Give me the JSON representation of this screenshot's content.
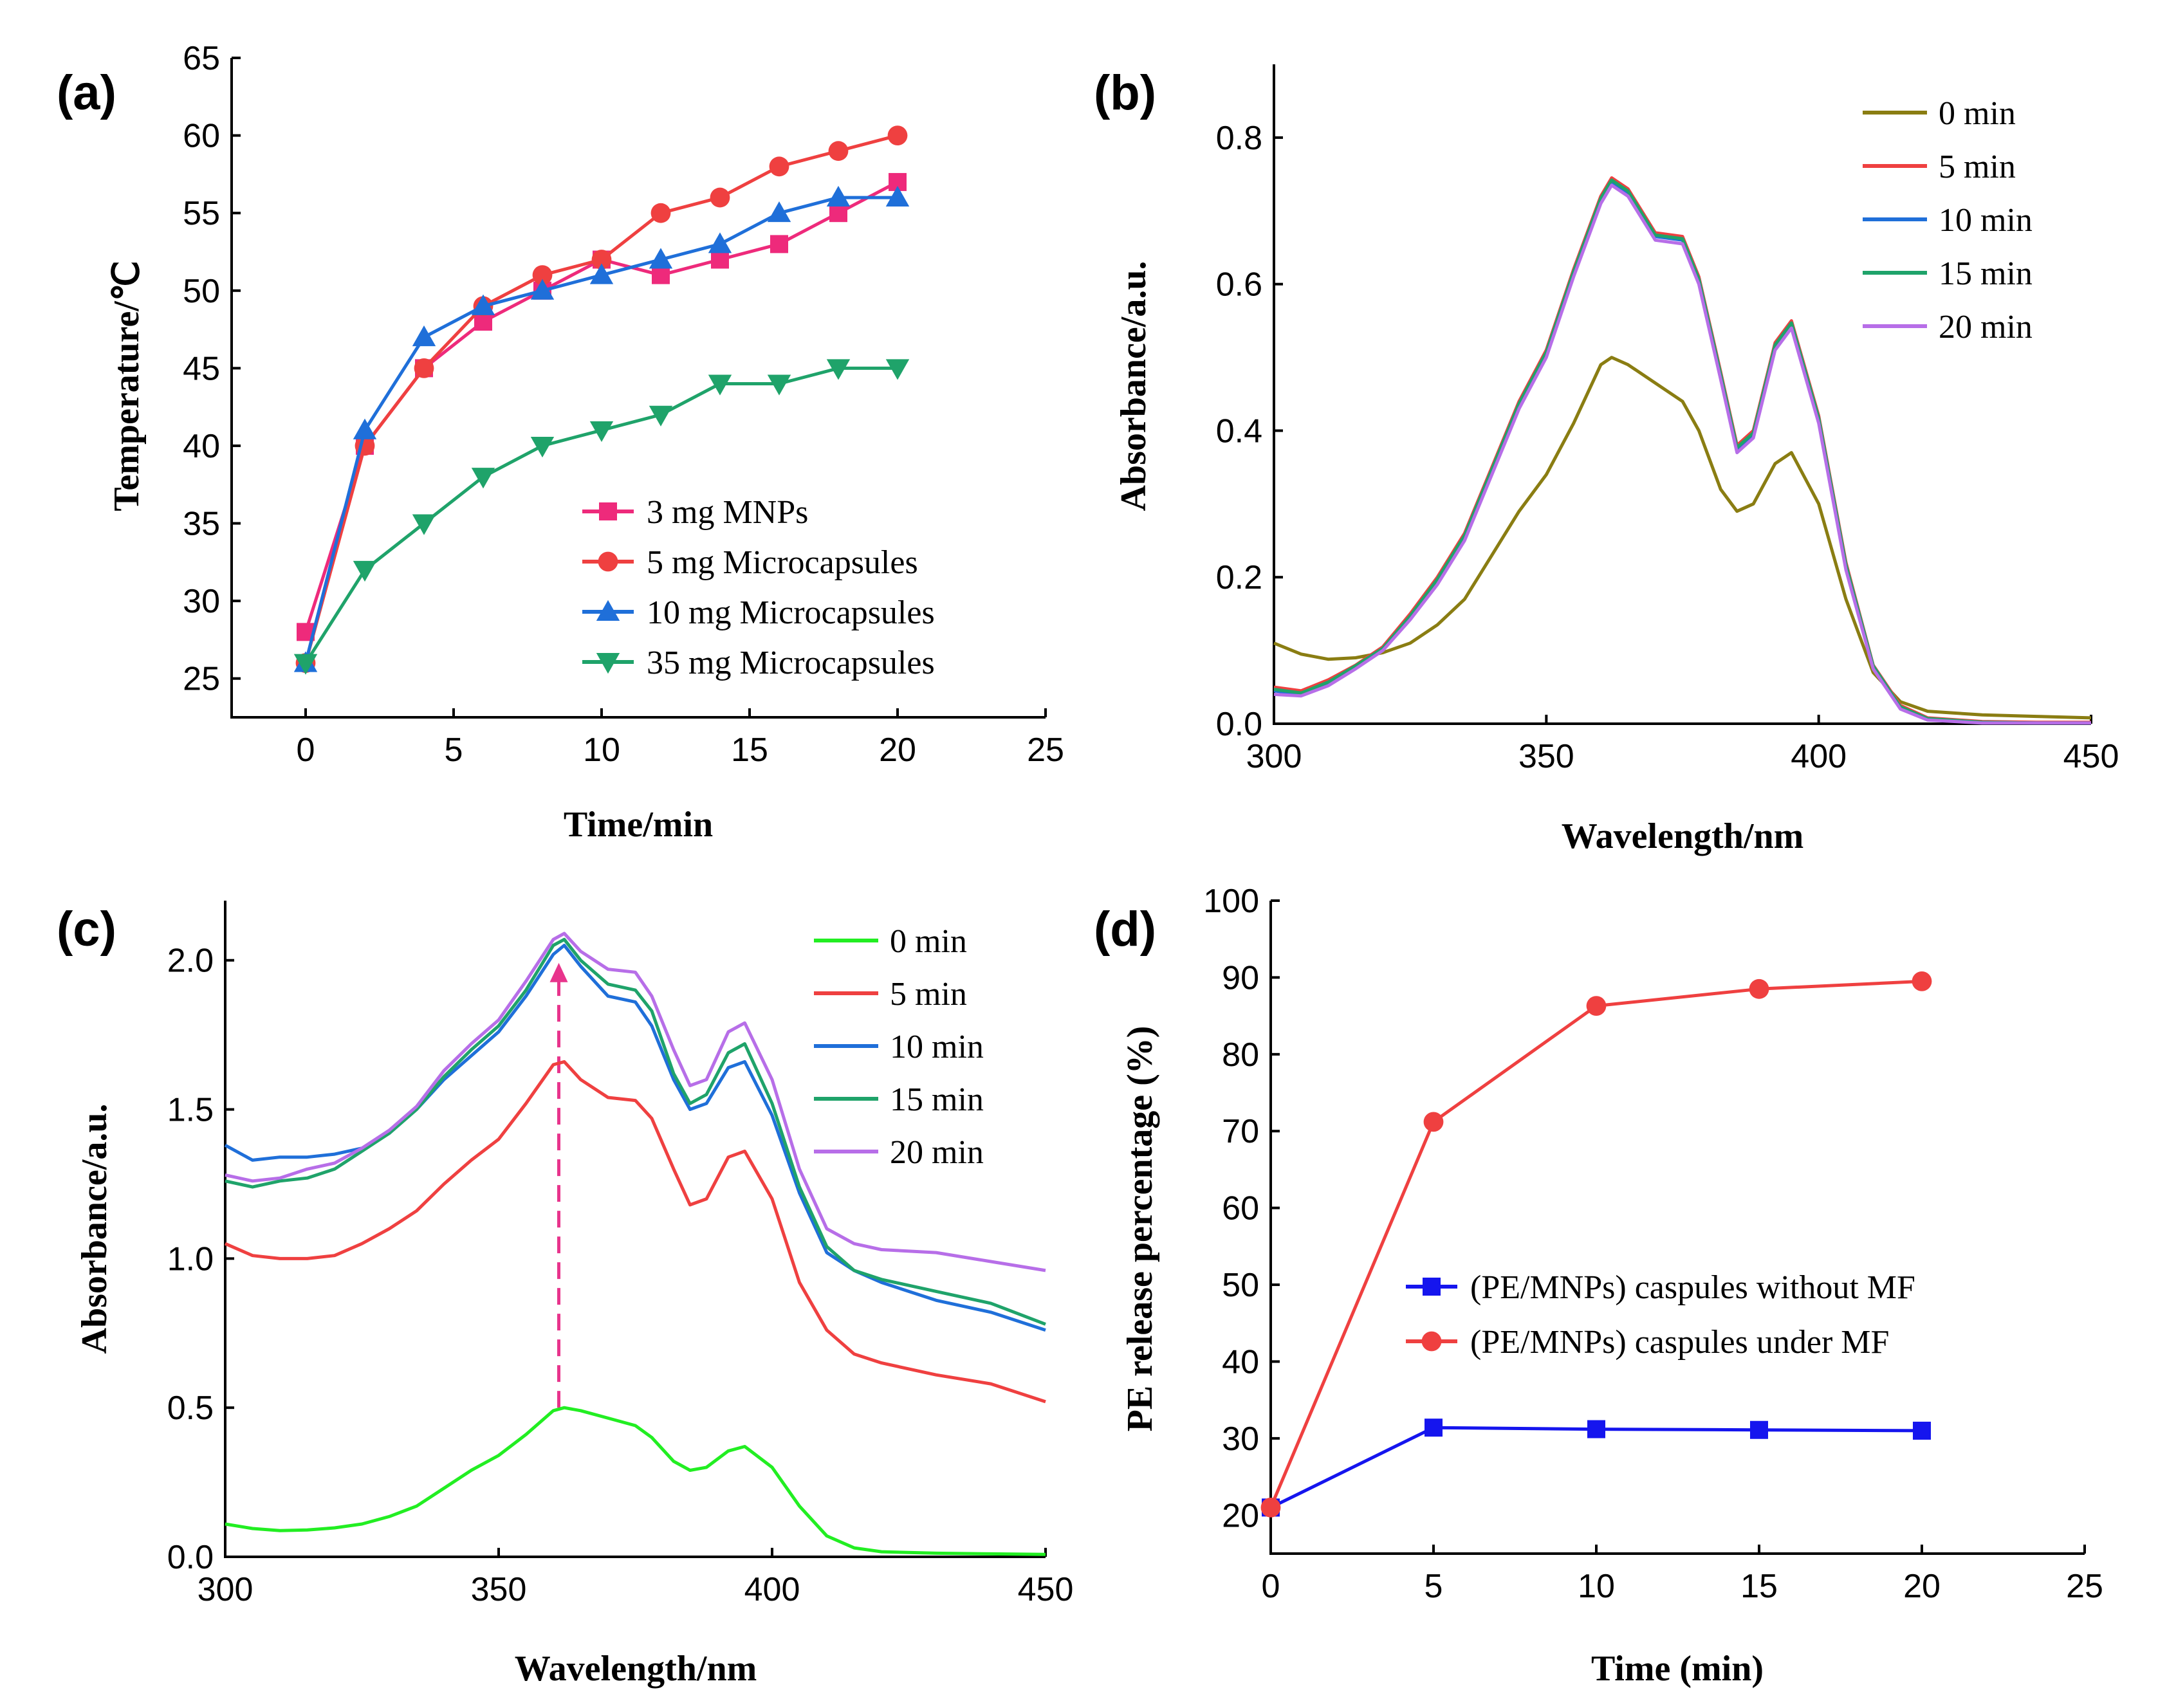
{
  "chart_data": [
    {
      "type": "line",
      "panel_label": "(a)",
      "xlabel": "Time/min",
      "ylabel": "Temperature/℃",
      "xlim": [
        -2.5,
        25
      ],
      "ylim": [
        22.5,
        65
      ],
      "xticks": [
        0,
        5,
        10,
        15,
        20,
        25
      ],
      "xtick_labels": [
        "0",
        "5",
        "10",
        "15",
        "20",
        "25"
      ],
      "yticks": [
        25,
        30,
        35,
        40,
        45,
        50,
        55,
        60,
        65
      ],
      "ytick_labels": [
        "25",
        "30",
        "35",
        "40",
        "45",
        "50",
        "55",
        "60",
        "65"
      ],
      "legend_position": "bottom-right",
      "series": [
        {
          "name": "3 mg MNPs",
          "color": "#ee2a7b",
          "marker": "square",
          "x": [
            0,
            2,
            4,
            6,
            8,
            10,
            12,
            14,
            16,
            18,
            20
          ],
          "y": [
            28,
            40,
            45,
            48,
            50,
            52,
            51,
            52,
            53,
            55,
            57
          ]
        },
        {
          "name": "5 mg Microcapsules",
          "color": "#ef4040",
          "marker": "circle",
          "x": [
            0,
            2,
            4,
            6,
            8,
            10,
            12,
            14,
            16,
            18,
            20
          ],
          "y": [
            26,
            40,
            45,
            49,
            51,
            52,
            55,
            56,
            58,
            59,
            60
          ]
        },
        {
          "name": "10 mg Microcapsules",
          "color": "#1f6fd9",
          "marker": "triangle-up",
          "x": [
            0,
            2,
            4,
            6,
            8,
            10,
            12,
            14,
            16,
            18,
            20
          ],
          "y": [
            26,
            41,
            47,
            49,
            50,
            51,
            52,
            53,
            55,
            56,
            56
          ]
        },
        {
          "name": "35 mg Microcapsules",
          "color": "#1fa36a",
          "marker": "triangle-down",
          "x": [
            0,
            2,
            4,
            6,
            8,
            10,
            12,
            14,
            16,
            18,
            20
          ],
          "y": [
            26,
            32,
            35,
            38,
            40,
            41,
            42,
            44,
            44,
            45,
            45
          ]
        }
      ]
    },
    {
      "type": "line",
      "panel_label": "(b)",
      "xlabel": "Wavelength/nm",
      "ylabel": "Absorbance/a.u.",
      "xlim": [
        300,
        450
      ],
      "ylim": [
        0,
        0.9
      ],
      "xticks": [
        300,
        350,
        400,
        450
      ],
      "xtick_labels": [
        "300",
        "350",
        "400",
        "450"
      ],
      "yticks": [
        0,
        0.2,
        0.4,
        0.6,
        0.8
      ],
      "ytick_labels": [
        "0.0",
        "0.2",
        "0.4",
        "0.6",
        "0.8"
      ],
      "legend_position": "top-right",
      "series": [
        {
          "name": "0 min",
          "color": "#8a7d12",
          "x": [
            300,
            305,
            310,
            315,
            320,
            325,
            330,
            335,
            340,
            345,
            350,
            355,
            360,
            362,
            365,
            370,
            375,
            378,
            382,
            385,
            388,
            392,
            395,
            400,
            405,
            410,
            415,
            420,
            430,
            440,
            450
          ],
          "y": [
            0.11,
            0.095,
            0.088,
            0.09,
            0.097,
            0.11,
            0.135,
            0.17,
            0.23,
            0.29,
            0.34,
            0.41,
            0.49,
            0.5,
            0.49,
            0.465,
            0.44,
            0.4,
            0.32,
            0.29,
            0.3,
            0.355,
            0.37,
            0.3,
            0.17,
            0.07,
            0.03,
            0.017,
            0.012,
            0.01,
            0.008
          ]
        },
        {
          "name": "5 min",
          "color": "#ef4040",
          "x": [
            300,
            305,
            310,
            315,
            320,
            325,
            330,
            335,
            340,
            345,
            350,
            355,
            360,
            362,
            365,
            370,
            375,
            378,
            382,
            385,
            388,
            392,
            395,
            400,
            405,
            410,
            415,
            420,
            430,
            440,
            450
          ],
          "y": [
            0.05,
            0.045,
            0.06,
            0.08,
            0.105,
            0.15,
            0.2,
            0.26,
            0.35,
            0.44,
            0.51,
            0.62,
            0.72,
            0.745,
            0.73,
            0.67,
            0.665,
            0.61,
            0.48,
            0.38,
            0.4,
            0.52,
            0.55,
            0.42,
            0.22,
            0.08,
            0.025,
            0.008,
            0.003,
            0.002,
            0.002
          ]
        },
        {
          "name": "10 min",
          "color": "#1f6fd9",
          "x": [
            300,
            305,
            310,
            315,
            320,
            325,
            330,
            335,
            340,
            345,
            350,
            355,
            360,
            362,
            365,
            370,
            375,
            378,
            382,
            385,
            388,
            392,
            395,
            400,
            405,
            410,
            415,
            420,
            430,
            440,
            450
          ],
          "y": [
            0.045,
            0.04,
            0.055,
            0.078,
            0.102,
            0.145,
            0.195,
            0.255,
            0.345,
            0.435,
            0.505,
            0.615,
            0.715,
            0.74,
            0.725,
            0.665,
            0.66,
            0.605,
            0.475,
            0.375,
            0.395,
            0.515,
            0.545,
            0.415,
            0.215,
            0.078,
            0.022,
            0.006,
            0.002,
            0.001,
            0.001
          ]
        },
        {
          "name": "15 min",
          "color": "#1fa36a",
          "x": [
            300,
            305,
            310,
            315,
            320,
            325,
            330,
            335,
            340,
            345,
            350,
            355,
            360,
            362,
            365,
            370,
            375,
            378,
            382,
            385,
            388,
            392,
            395,
            400,
            405,
            410,
            415,
            420,
            430,
            440,
            450
          ],
          "y": [
            0.047,
            0.042,
            0.057,
            0.079,
            0.103,
            0.147,
            0.197,
            0.257,
            0.347,
            0.437,
            0.507,
            0.617,
            0.717,
            0.742,
            0.727,
            0.667,
            0.662,
            0.607,
            0.477,
            0.377,
            0.397,
            0.517,
            0.547,
            0.417,
            0.217,
            0.079,
            0.023,
            0.007,
            0.002,
            0.001,
            0.001
          ]
        },
        {
          "name": "20 min",
          "color": "#b76ee8",
          "x": [
            300,
            305,
            310,
            315,
            320,
            325,
            330,
            335,
            340,
            345,
            350,
            355,
            360,
            362,
            365,
            370,
            375,
            378,
            382,
            385,
            388,
            392,
            395,
            400,
            405,
            410,
            415,
            420,
            430,
            440,
            450
          ],
          "y": [
            0.04,
            0.038,
            0.052,
            0.075,
            0.1,
            0.142,
            0.19,
            0.25,
            0.34,
            0.43,
            0.5,
            0.61,
            0.71,
            0.735,
            0.72,
            0.66,
            0.655,
            0.6,
            0.47,
            0.37,
            0.39,
            0.51,
            0.54,
            0.41,
            0.21,
            0.075,
            0.02,
            0.005,
            0.001,
            0.001,
            0.001
          ]
        }
      ]
    },
    {
      "type": "line",
      "panel_label": "(c)",
      "xlabel": "Wavelength/nm",
      "ylabel": "Absorbance/a.u.",
      "xlim": [
        300,
        450
      ],
      "ylim": [
        0,
        2.2
      ],
      "xticks": [
        300,
        350,
        400,
        450
      ],
      "xtick_labels": [
        "300",
        "350",
        "400",
        "450"
      ],
      "yticks": [
        0,
        0.5,
        1.0,
        1.5,
        2.0
      ],
      "ytick_labels": [
        "0.0",
        "0.5",
        "1.0",
        "1.5",
        "2.0"
      ],
      "legend_position": "top-right",
      "marker_line": {
        "x": 361,
        "y_top": 2.0,
        "color": "#e8348c"
      },
      "series": [
        {
          "name": "0 min",
          "color": "#22ee22",
          "x": [
            300,
            305,
            310,
            315,
            320,
            325,
            330,
            335,
            340,
            345,
            350,
            355,
            360,
            362,
            365,
            370,
            375,
            378,
            382,
            385,
            388,
            392,
            395,
            400,
            405,
            410,
            415,
            420,
            430,
            440,
            450
          ],
          "y": [
            0.11,
            0.095,
            0.088,
            0.09,
            0.097,
            0.11,
            0.135,
            0.17,
            0.23,
            0.29,
            0.34,
            0.41,
            0.49,
            0.5,
            0.49,
            0.465,
            0.44,
            0.4,
            0.32,
            0.29,
            0.3,
            0.355,
            0.37,
            0.3,
            0.17,
            0.07,
            0.03,
            0.017,
            0.012,
            0.01,
            0.008
          ]
        },
        {
          "name": "5 min",
          "color": "#ef4040",
          "x": [
            300,
            305,
            310,
            315,
            320,
            325,
            330,
            335,
            340,
            345,
            350,
            355,
            360,
            362,
            365,
            370,
            375,
            378,
            382,
            385,
            388,
            392,
            395,
            400,
            405,
            410,
            415,
            420,
            430,
            440,
            450
          ],
          "y": [
            1.05,
            1.01,
            1.0,
            1.0,
            1.01,
            1.05,
            1.1,
            1.16,
            1.25,
            1.33,
            1.4,
            1.52,
            1.65,
            1.66,
            1.6,
            1.54,
            1.53,
            1.47,
            1.3,
            1.18,
            1.2,
            1.34,
            1.36,
            1.2,
            0.92,
            0.76,
            0.68,
            0.65,
            0.61,
            0.58,
            0.52
          ]
        },
        {
          "name": "10 min",
          "color": "#1f6fd9",
          "x": [
            300,
            305,
            310,
            315,
            320,
            325,
            330,
            335,
            340,
            345,
            350,
            355,
            360,
            362,
            365,
            370,
            375,
            378,
            382,
            385,
            388,
            392,
            395,
            400,
            405,
            410,
            415,
            420,
            430,
            440,
            450
          ],
          "y": [
            1.38,
            1.33,
            1.34,
            1.34,
            1.35,
            1.37,
            1.42,
            1.5,
            1.6,
            1.68,
            1.76,
            1.88,
            2.02,
            2.05,
            1.98,
            1.88,
            1.86,
            1.78,
            1.6,
            1.5,
            1.52,
            1.64,
            1.66,
            1.48,
            1.22,
            1.02,
            0.96,
            0.92,
            0.86,
            0.82,
            0.76
          ]
        },
        {
          "name": "15 min",
          "color": "#1fa36a",
          "x": [
            300,
            305,
            310,
            315,
            320,
            325,
            330,
            335,
            340,
            345,
            350,
            355,
            360,
            362,
            365,
            370,
            375,
            378,
            382,
            385,
            388,
            392,
            395,
            400,
            405,
            410,
            415,
            420,
            430,
            440,
            450
          ],
          "y": [
            1.26,
            1.24,
            1.26,
            1.27,
            1.3,
            1.36,
            1.42,
            1.5,
            1.61,
            1.7,
            1.78,
            1.9,
            2.05,
            2.07,
            2.0,
            1.92,
            1.9,
            1.83,
            1.62,
            1.52,
            1.55,
            1.69,
            1.72,
            1.52,
            1.24,
            1.04,
            0.96,
            0.93,
            0.89,
            0.85,
            0.78
          ]
        },
        {
          "name": "20 min",
          "color": "#b76ee8",
          "x": [
            300,
            305,
            310,
            315,
            320,
            325,
            330,
            335,
            340,
            345,
            350,
            355,
            360,
            362,
            365,
            370,
            375,
            378,
            382,
            385,
            388,
            392,
            395,
            400,
            405,
            410,
            415,
            420,
            430,
            440,
            450
          ],
          "y": [
            1.28,
            1.26,
            1.27,
            1.3,
            1.32,
            1.37,
            1.43,
            1.51,
            1.63,
            1.72,
            1.8,
            1.93,
            2.07,
            2.09,
            2.03,
            1.97,
            1.96,
            1.88,
            1.7,
            1.58,
            1.6,
            1.76,
            1.79,
            1.6,
            1.3,
            1.1,
            1.05,
            1.03,
            1.02,
            0.99,
            0.96
          ]
        }
      ]
    },
    {
      "type": "line",
      "panel_label": "(d)",
      "xlabel": "Time (min)",
      "ylabel": "PE release percentage (%)",
      "xlim": [
        0,
        25
      ],
      "ylim": [
        15,
        100
      ],
      "xticks": [
        0,
        5,
        10,
        15,
        20,
        25
      ],
      "xtick_labels": [
        "0",
        "5",
        "10",
        "15",
        "20",
        "25"
      ],
      "yticks": [
        20,
        30,
        40,
        50,
        60,
        70,
        80,
        90,
        100
      ],
      "ytick_labels": [
        "20",
        "30",
        "40",
        "50",
        "60",
        "70",
        "80",
        "90",
        "100"
      ],
      "legend_position": "center-right",
      "series": [
        {
          "name": "(PE/MNPs) caspules without MF",
          "color": "#1515ee",
          "marker": "square",
          "x": [
            0,
            5,
            10,
            15,
            20
          ],
          "y": [
            21.0,
            31.4,
            31.2,
            31.1,
            31.0
          ]
        },
        {
          "name": "(PE/MNPs) caspules under MF",
          "color": "#ef4040",
          "marker": "circle",
          "x": [
            0,
            5,
            10,
            15,
            20
          ],
          "y": [
            21.0,
            71.2,
            86.3,
            88.5,
            89.5
          ]
        }
      ]
    }
  ]
}
